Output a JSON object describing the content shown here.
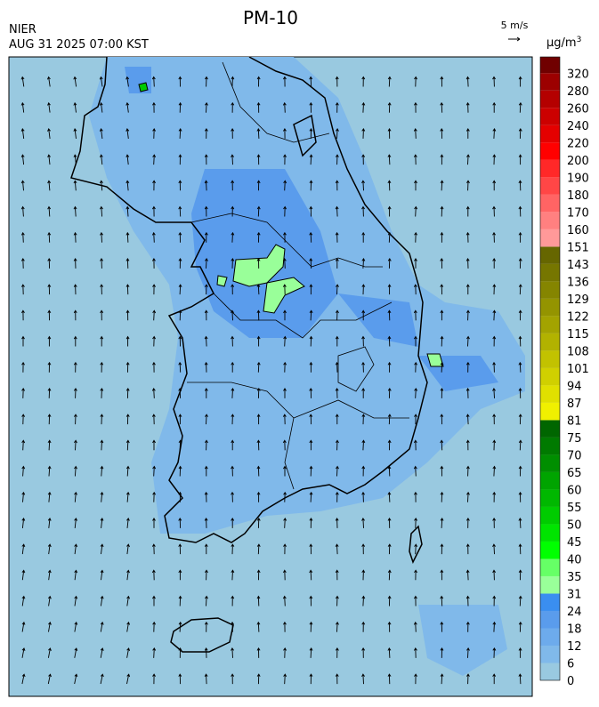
{
  "header": {
    "title": "PM-10",
    "agency": "NIER",
    "timestamp": "AUG 31 2025 07:00 KST",
    "wind_scale": "5 m/s"
  },
  "colorbar": {
    "unit": "μg/m",
    "unit_superscript": "3",
    "levels": [
      0,
      6,
      12,
      18,
      24,
      31,
      35,
      40,
      45,
      50,
      55,
      60,
      65,
      70,
      75,
      81,
      87,
      94,
      101,
      108,
      115,
      122,
      129,
      136,
      143,
      151,
      160,
      170,
      180,
      190,
      200,
      220,
      240,
      260,
      280,
      320
    ],
    "colors": [
      "#99c9e0",
      "#80b9ea",
      "#6dabec",
      "#5a9cec",
      "#3a8ef0",
      "#99ff99",
      "#66ff66",
      "#00ff00",
      "#00e400",
      "#00cc00",
      "#00b800",
      "#00a400",
      "#008e00",
      "#007a00",
      "#006600",
      "#f0f000",
      "#e0e000",
      "#d0d000",
      "#c2c200",
      "#b2b200",
      "#a3a300",
      "#949400",
      "#858500",
      "#767600",
      "#666600",
      "#ff9999",
      "#ff8080",
      "#ff6464",
      "#ff4646",
      "#ff2828",
      "#ff0000",
      "#e40000",
      "#cc0000",
      "#b40000",
      "#9c0000",
      "#700000"
    ]
  }
}
